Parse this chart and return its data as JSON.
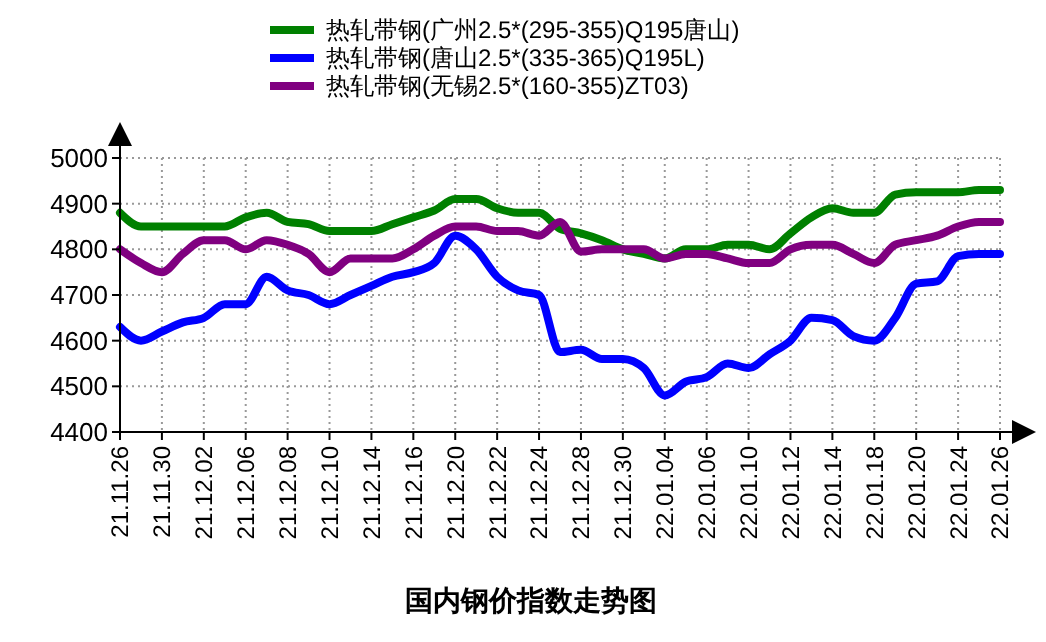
{
  "chart_data": {
    "type": "line",
    "title": "国内钢价指数走势图",
    "categories": [
      "21.11.26",
      null,
      "21.11.30",
      null,
      "21.12.02",
      null,
      "21.12.06",
      null,
      "21.12.08",
      null,
      "21.12.10",
      null,
      "21.12.14",
      null,
      "21.12.16",
      null,
      "21.12.20",
      null,
      "21.12.22",
      null,
      "21.12.24",
      null,
      "21.12.28",
      null,
      "21.12.30",
      null,
      "22.01.04",
      null,
      "22.01.06",
      null,
      "22.01.10",
      null,
      "22.01.12",
      null,
      "22.01.14",
      null,
      "22.01.18",
      null,
      "22.01.20",
      null,
      "22.01.24",
      null,
      "22.01.26"
    ],
    "series": [
      {
        "name": "热轧带钢(广州2.5*(295-355)Q195唐山)",
        "color": "#008000",
        "values": [
          4880,
          4850,
          4850,
          4850,
          4850,
          4850,
          4870,
          4880,
          4860,
          4855,
          4840,
          4840,
          4840,
          4855,
          4870,
          4885,
          4910,
          4910,
          4890,
          4880,
          4880,
          4845,
          4835,
          4820,
          4800,
          4790,
          4780,
          4800,
          4800,
          4810,
          4810,
          4800,
          4835,
          4870,
          4890,
          4880,
          4880,
          4920,
          4925,
          4925,
          4925,
          4930,
          4930
        ]
      },
      {
        "name": "热轧带钢(唐山2.5*(335-365)Q195L)",
        "color": "#0000ff",
        "values": [
          4630,
          4600,
          4620,
          4640,
          4650,
          4680,
          4680,
          4740,
          4710,
          4700,
          4680,
          4700,
          4720,
          4740,
          4750,
          4770,
          4830,
          4800,
          4740,
          4710,
          4700,
          4575,
          4580,
          4560,
          4560,
          4540,
          4480,
          4510,
          4520,
          4550,
          4540,
          4570,
          4600,
          4650,
          4645,
          4610,
          4600,
          4650,
          4725,
          4730,
          4785,
          4790,
          4790
        ]
      },
      {
        "name": "热轧带钢(无锡2.5*(160-355)ZT03)",
        "color": "#800080",
        "values": [
          4800,
          4770,
          4750,
          4790,
          4820,
          4820,
          4800,
          4820,
          4810,
          4790,
          4750,
          4780,
          4780,
          4780,
          4800,
          4830,
          4850,
          4850,
          4840,
          4840,
          4830,
          4860,
          4795,
          4800,
          4800,
          4800,
          4780,
          4790,
          4790,
          4780,
          4770,
          4770,
          4800,
          4810,
          4810,
          4790,
          4770,
          4810,
          4820,
          4830,
          4850,
          4860,
          4860
        ]
      }
    ],
    "ylim": [
      4400,
      5000
    ],
    "yticks": [
      4400,
      4500,
      4600,
      4700,
      4800,
      4900,
      5000
    ],
    "grid": true,
    "legend": "top",
    "marker": "none",
    "line_style": "solid"
  }
}
